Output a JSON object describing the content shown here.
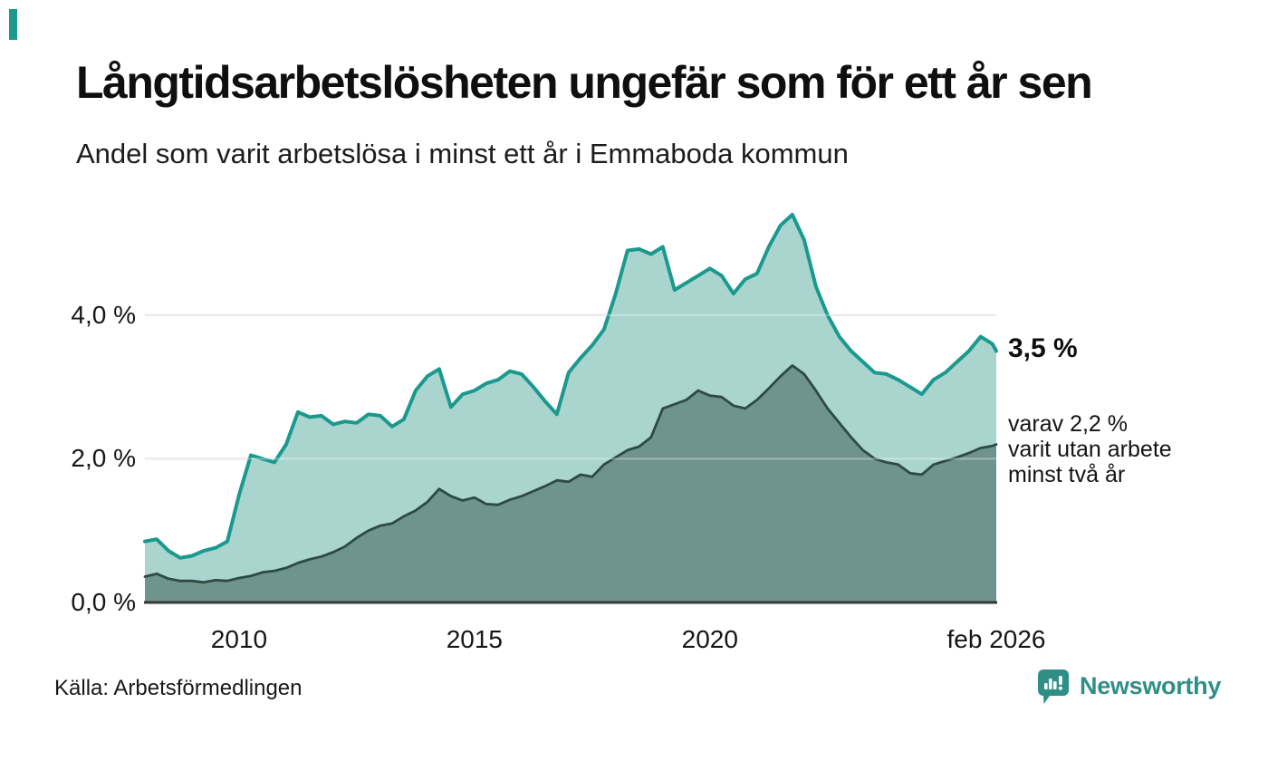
{
  "header": {
    "title": "Långtidsarbetslösheten ungefär som för ett år sen",
    "subtitle": "Andel som varit arbetslösa i minst ett år i Emmaboda kommun"
  },
  "annotations": {
    "total_end_label": "3,5 %",
    "subset_line1": "varav 2,2 %",
    "subset_line2": "varit utan arbete",
    "subset_line3": "minst två år"
  },
  "source_label": "Källa: Arbetsförmedlingen",
  "branding": {
    "logo_text": "Newsworthy"
  },
  "colors": {
    "accent": "#1b998e",
    "total_line": "#1b998e",
    "total_fill": "#a9d5ce",
    "subset_line": "#2e4a44",
    "subset_fill": "#6f948d",
    "gridline": "#dcdcdc",
    "axis_line": "#383838",
    "brand_teal": "#2f8f86",
    "text": "#111111"
  },
  "chart_data": {
    "type": "area",
    "title": "Andel som varit arbetslösa i minst ett år i Emmaboda kommun",
    "xlabel": "",
    "ylabel": "%",
    "xlim": [
      2008,
      2026.083
    ],
    "ylim": [
      0,
      5.6
    ],
    "grid": "horizontal",
    "legend_position": "right-annotations",
    "yticks": [
      {
        "value": 0,
        "label": "0,0 %"
      },
      {
        "value": 2,
        "label": "2,0 %"
      },
      {
        "value": 4,
        "label": "4,0 %"
      }
    ],
    "xticks": [
      {
        "value": 2010,
        "label": "2010"
      },
      {
        "value": 2015,
        "label": "2015"
      },
      {
        "value": 2020,
        "label": "2020"
      },
      {
        "value": 2026.083,
        "label": "feb 2026"
      }
    ],
    "x": [
      2008,
      2008.25,
      2008.5,
      2008.75,
      2009,
      2009.25,
      2009.5,
      2009.75,
      2010,
      2010.25,
      2010.5,
      2010.75,
      2011,
      2011.25,
      2011.5,
      2011.75,
      2012,
      2012.25,
      2012.5,
      2012.75,
      2013,
      2013.25,
      2013.5,
      2013.75,
      2014,
      2014.25,
      2014.5,
      2014.75,
      2015,
      2015.25,
      2015.5,
      2015.75,
      2016,
      2016.25,
      2016.5,
      2016.75,
      2017,
      2017.25,
      2017.5,
      2017.75,
      2018,
      2018.25,
      2018.5,
      2018.75,
      2019,
      2019.25,
      2019.5,
      2019.75,
      2020,
      2020.25,
      2020.5,
      2020.75,
      2021,
      2021.25,
      2021.5,
      2021.75,
      2022,
      2022.25,
      2022.5,
      2022.75,
      2023,
      2023.25,
      2023.5,
      2023.75,
      2024,
      2024.25,
      2024.5,
      2024.75,
      2025,
      2025.25,
      2025.5,
      2025.75,
      2026,
      2026.083
    ],
    "series": [
      {
        "name": "Andel arbetslösa minst ett år",
        "end_value_label": "3,5 %",
        "values": [
          0.85,
          0.88,
          0.72,
          0.62,
          0.65,
          0.72,
          0.76,
          0.85,
          1.5,
          2.05,
          2.0,
          1.95,
          2.2,
          2.65,
          2.58,
          2.6,
          2.48,
          2.52,
          2.5,
          2.62,
          2.6,
          2.45,
          2.55,
          2.95,
          3.15,
          3.25,
          2.72,
          2.9,
          2.95,
          3.05,
          3.1,
          3.22,
          3.18,
          3.0,
          2.8,
          2.62,
          3.2,
          3.4,
          3.58,
          3.8,
          4.3,
          4.9,
          4.92,
          4.85,
          4.95,
          4.35,
          4.45,
          4.55,
          4.65,
          4.55,
          4.3,
          4.5,
          4.58,
          4.95,
          5.25,
          5.4,
          5.05,
          4.4,
          4.0,
          3.7,
          3.5,
          3.35,
          3.2,
          3.18,
          3.1,
          3.0,
          2.9,
          3.1,
          3.2,
          3.35,
          3.5,
          3.7,
          3.6,
          3.5
        ]
      },
      {
        "name": "varav utan arbete minst två år",
        "end_value_label": "2,2 %",
        "values": [
          0.36,
          0.4,
          0.33,
          0.3,
          0.3,
          0.28,
          0.31,
          0.3,
          0.34,
          0.37,
          0.42,
          0.44,
          0.48,
          0.55,
          0.6,
          0.64,
          0.7,
          0.78,
          0.9,
          1.0,
          1.07,
          1.1,
          1.2,
          1.28,
          1.4,
          1.58,
          1.48,
          1.42,
          1.46,
          1.37,
          1.36,
          1.43,
          1.48,
          1.55,
          1.62,
          1.7,
          1.68,
          1.78,
          1.75,
          1.92,
          2.02,
          2.12,
          2.17,
          2.3,
          2.7,
          2.76,
          2.82,
          2.95,
          2.88,
          2.86,
          2.74,
          2.7,
          2.82,
          2.98,
          3.15,
          3.3,
          3.18,
          2.95,
          2.7,
          2.5,
          2.3,
          2.12,
          2.0,
          1.95,
          1.92,
          1.8,
          1.78,
          1.92,
          1.97,
          2.02,
          2.08,
          2.15,
          2.18,
          2.2
        ]
      }
    ]
  }
}
